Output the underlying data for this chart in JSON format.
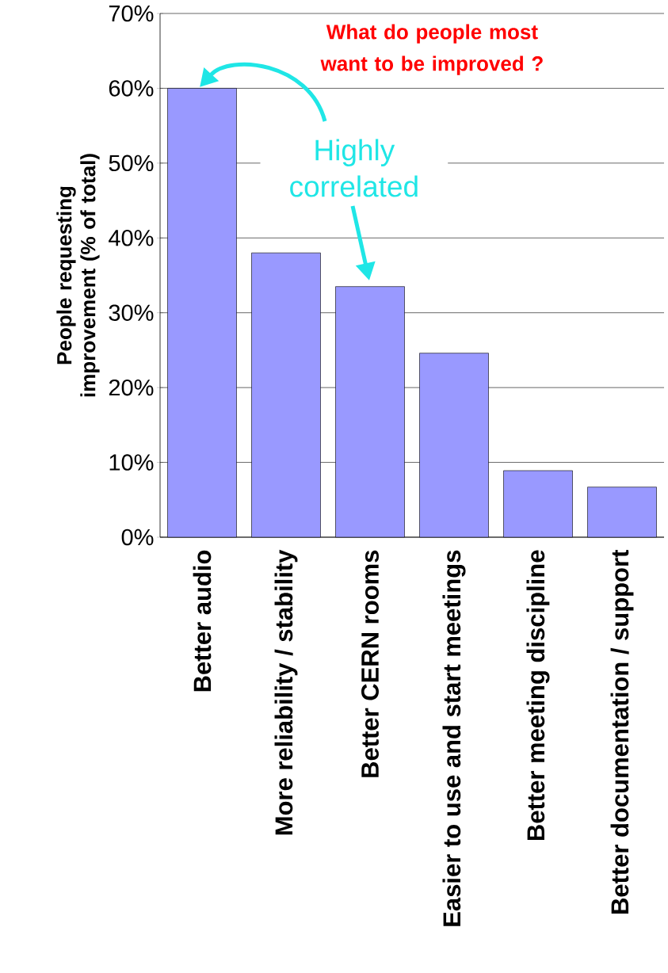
{
  "chart_data": {
    "type": "bar",
    "title": "What do people most want to be improved ?",
    "ylabel": "People requesting improvement (% of total)",
    "categories": [
      "Better audio",
      "More reliability / stability",
      "Better CERN rooms",
      "Easier to use and start meetings",
      "Better meeting discipline",
      "Better documentation / support"
    ],
    "values": [
      60,
      38,
      33.5,
      24.6,
      8.9,
      6.7
    ],
    "color": "#9999ff",
    "ylim": [
      0,
      70
    ],
    "yticks": [
      {
        "value": 0,
        "label": "0%"
      },
      {
        "value": 10,
        "label": "10%"
      },
      {
        "value": 20,
        "label": "20%"
      },
      {
        "value": 30,
        "label": "30%"
      },
      {
        "value": 40,
        "label": "40%"
      },
      {
        "value": 50,
        "label": "50%"
      },
      {
        "value": 60,
        "label": "60%"
      },
      {
        "value": 70,
        "label": "70%"
      }
    ],
    "grid": "y",
    "annotations": [
      "Highly correlated"
    ]
  }
}
